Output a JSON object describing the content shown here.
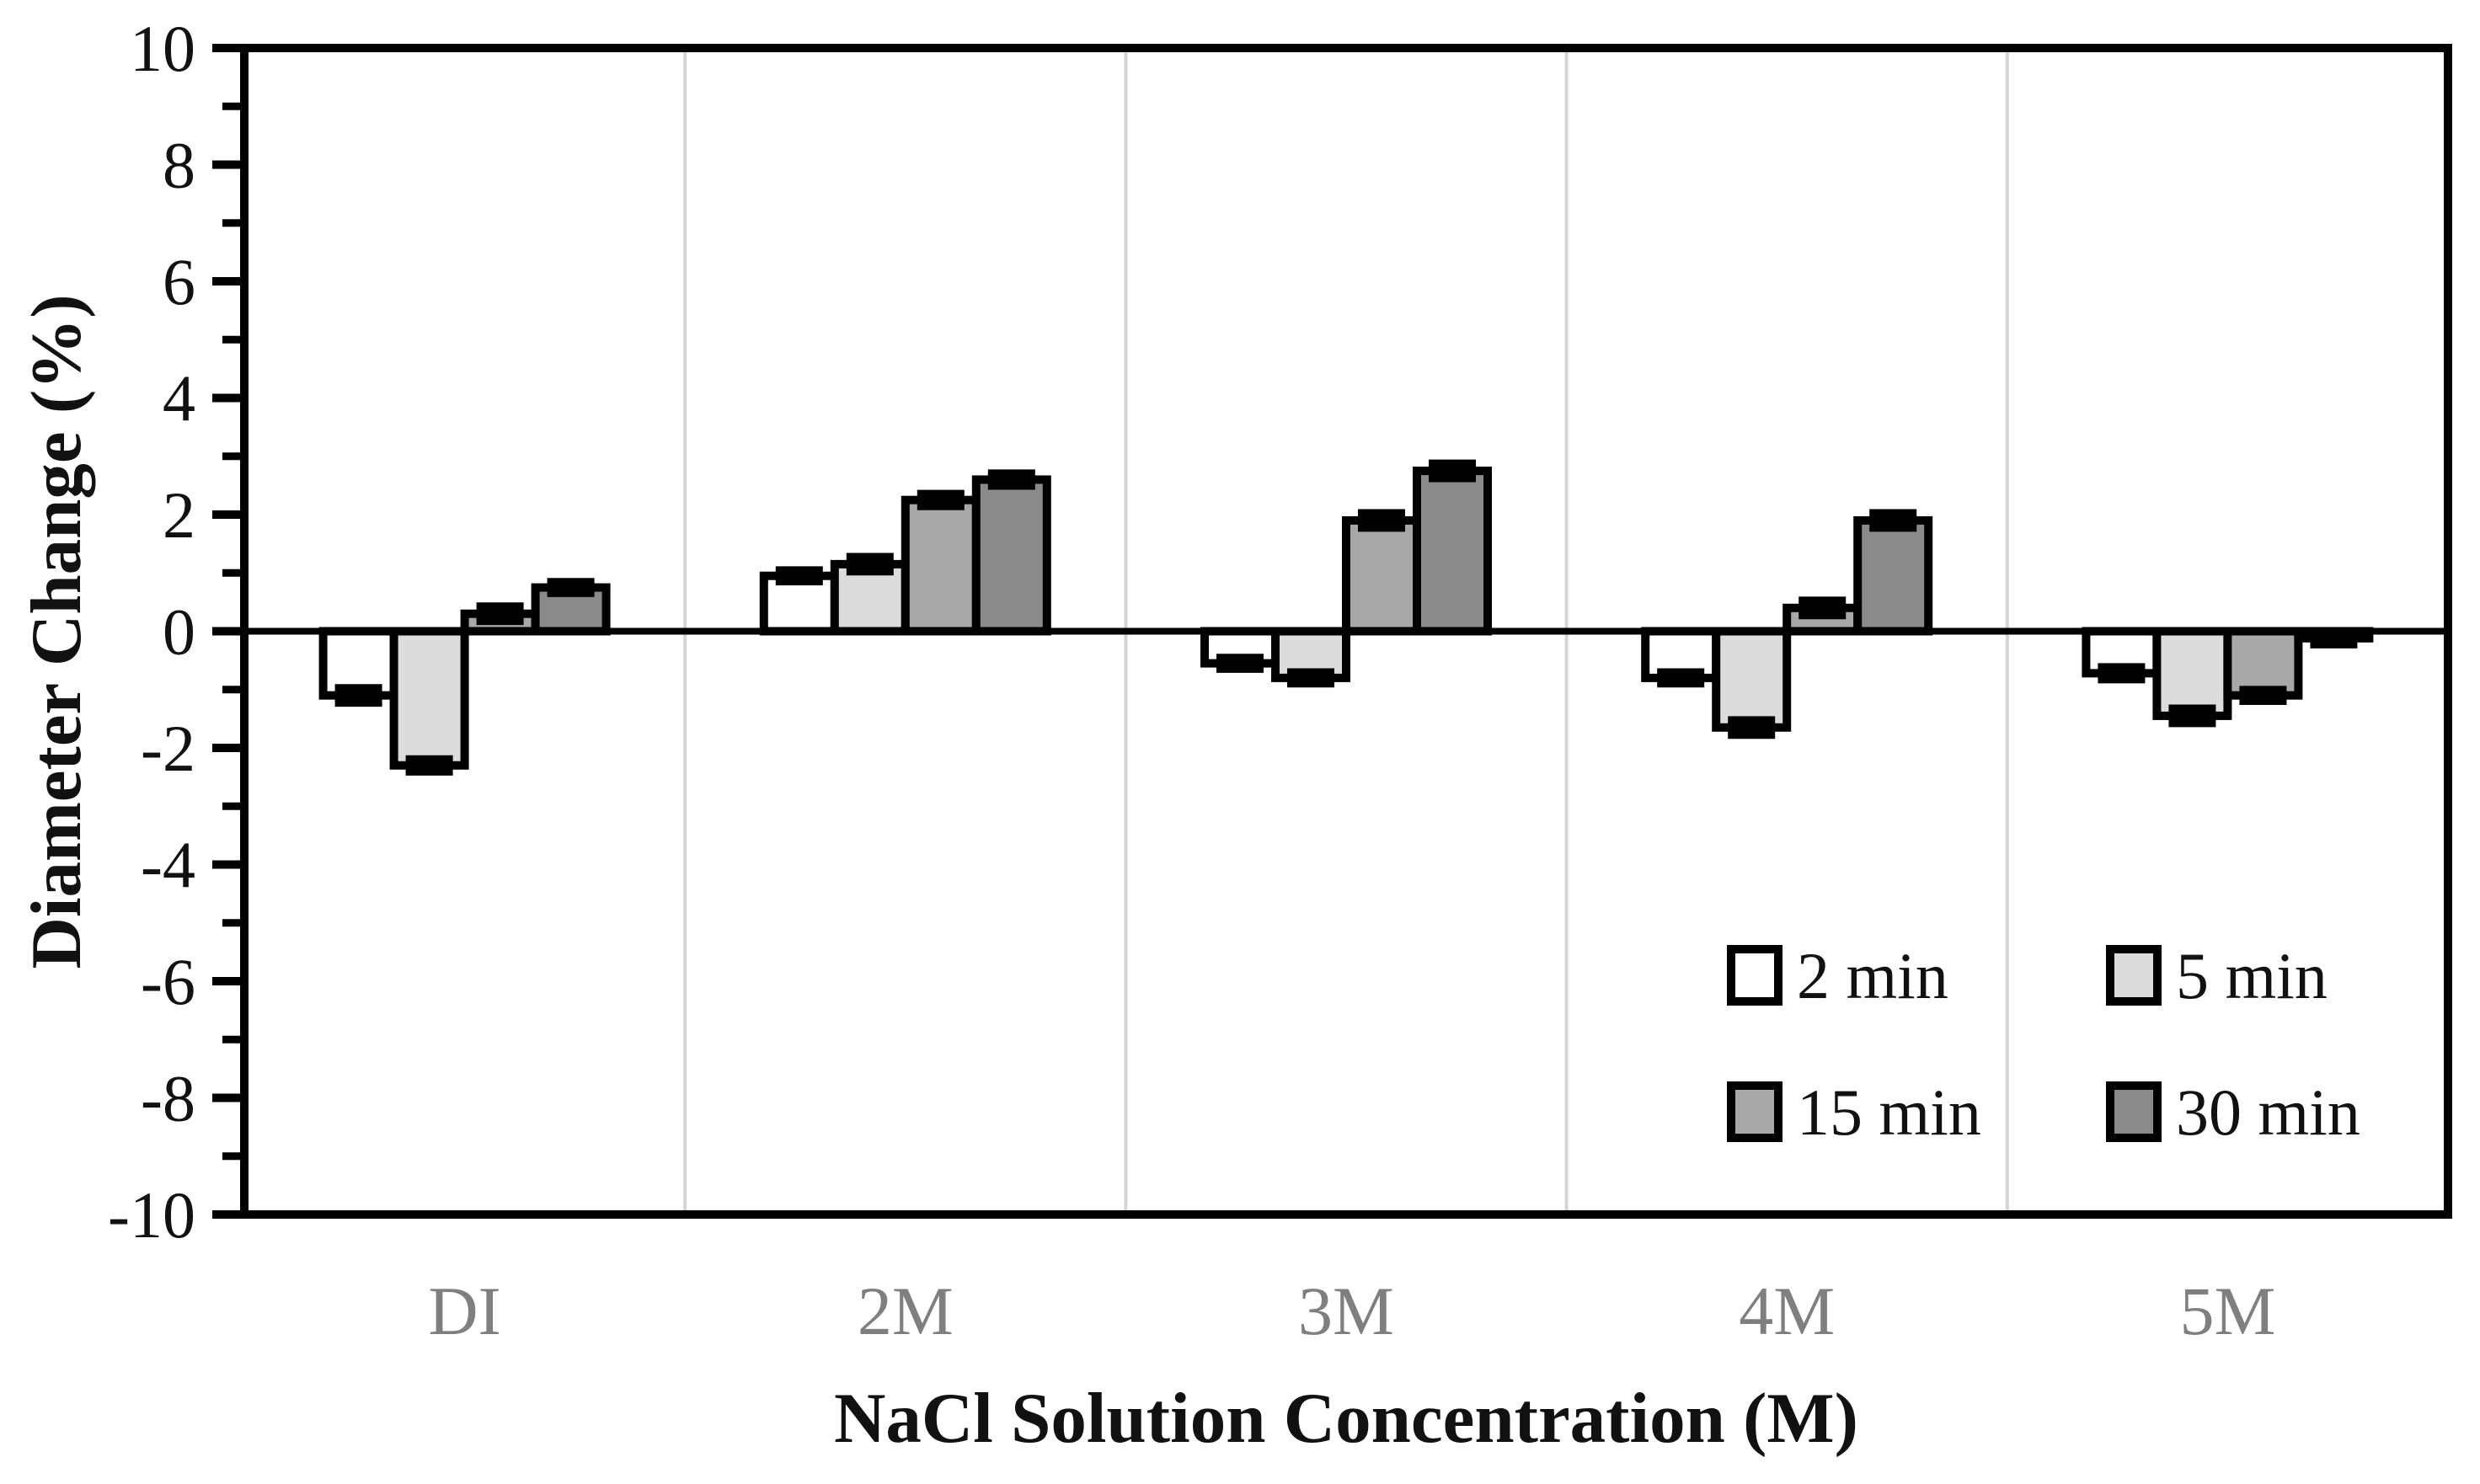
{
  "chart_data": {
    "type": "bar",
    "title": "",
    "xlabel": "NaCl Solution Concentration (M)",
    "ylabel": "Diameter Change (%)",
    "categories": [
      "DI",
      "2M",
      "3M",
      "4M",
      "5M"
    ],
    "series": [
      {
        "name": "2 min",
        "color": "#ffffff",
        "values": [
          -1.1,
          0.95,
          -0.55,
          -0.8,
          -0.72
        ],
        "errors": [
          0.1,
          0.07,
          0.07,
          0.07,
          0.08
        ]
      },
      {
        "name": "5 min",
        "color": "#dcdcdc",
        "values": [
          -2.3,
          1.15,
          -0.8,
          -1.65,
          -1.45
        ],
        "errors": [
          0.08,
          0.1,
          0.07,
          0.1,
          0.1
        ]
      },
      {
        "name": "15 min",
        "color": "#a8a8a8",
        "values": [
          0.3,
          2.25,
          1.9,
          0.4,
          -1.1
        ],
        "errors": [
          0.1,
          0.08,
          0.1,
          0.1,
          0.07
        ]
      },
      {
        "name": "30 min",
        "color": "#8a8a8a",
        "values": [
          0.75,
          2.6,
          2.75,
          1.9,
          -0.12
        ],
        "errors": [
          0.07,
          0.08,
          0.1,
          0.1,
          0.08
        ]
      }
    ],
    "y_axis": {
      "min": -10,
      "max": 10,
      "major_step": 2,
      "minor_step": 1,
      "tick_labels": [
        "10",
        "8",
        "6",
        "4",
        "2",
        "0",
        "-2",
        "-4",
        "-6",
        "-8",
        "-10"
      ]
    },
    "legend": {
      "position": "inside-lower-right",
      "rows": [
        [
          "2 min",
          "5 min"
        ],
        [
          "15 min",
          "30 min"
        ]
      ]
    },
    "grid": {
      "vertical_group_separators": true,
      "separator_color": "#d4d4d4"
    },
    "colors": {
      "bar_outline": "#000000",
      "error_bar": "#000000",
      "axis": "#000000",
      "category_label": "#7f7f7f"
    },
    "ylim": [
      -10,
      10
    ]
  }
}
